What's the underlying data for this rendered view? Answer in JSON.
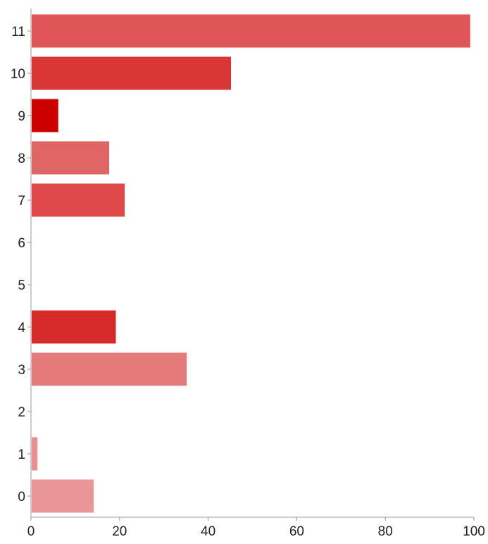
{
  "chart_data": {
    "type": "bar",
    "orientation": "horizontal",
    "title": "",
    "xlabel": "",
    "ylabel": "",
    "xlim": [
      0,
      100
    ],
    "x_ticks": [
      0,
      20,
      40,
      60,
      80,
      100
    ],
    "grid": false,
    "categories": [
      "11",
      "10",
      "9",
      "8",
      "7",
      "6",
      "5",
      "4",
      "3",
      "2",
      "1",
      "0"
    ],
    "values": [
      99,
      45,
      6,
      17.5,
      21,
      0,
      0,
      19,
      35,
      0,
      1.3,
      14
    ],
    "colors": [
      "#e05555",
      "#db3636",
      "#cc0000",
      "#e06565",
      "#de4848",
      "#ffffff",
      "#ffffff",
      "#d72a2a",
      "#e57a7a",
      "#ffffff",
      "#ea8e8e",
      "#eb9696"
    ],
    "axis_color": "#999999"
  }
}
